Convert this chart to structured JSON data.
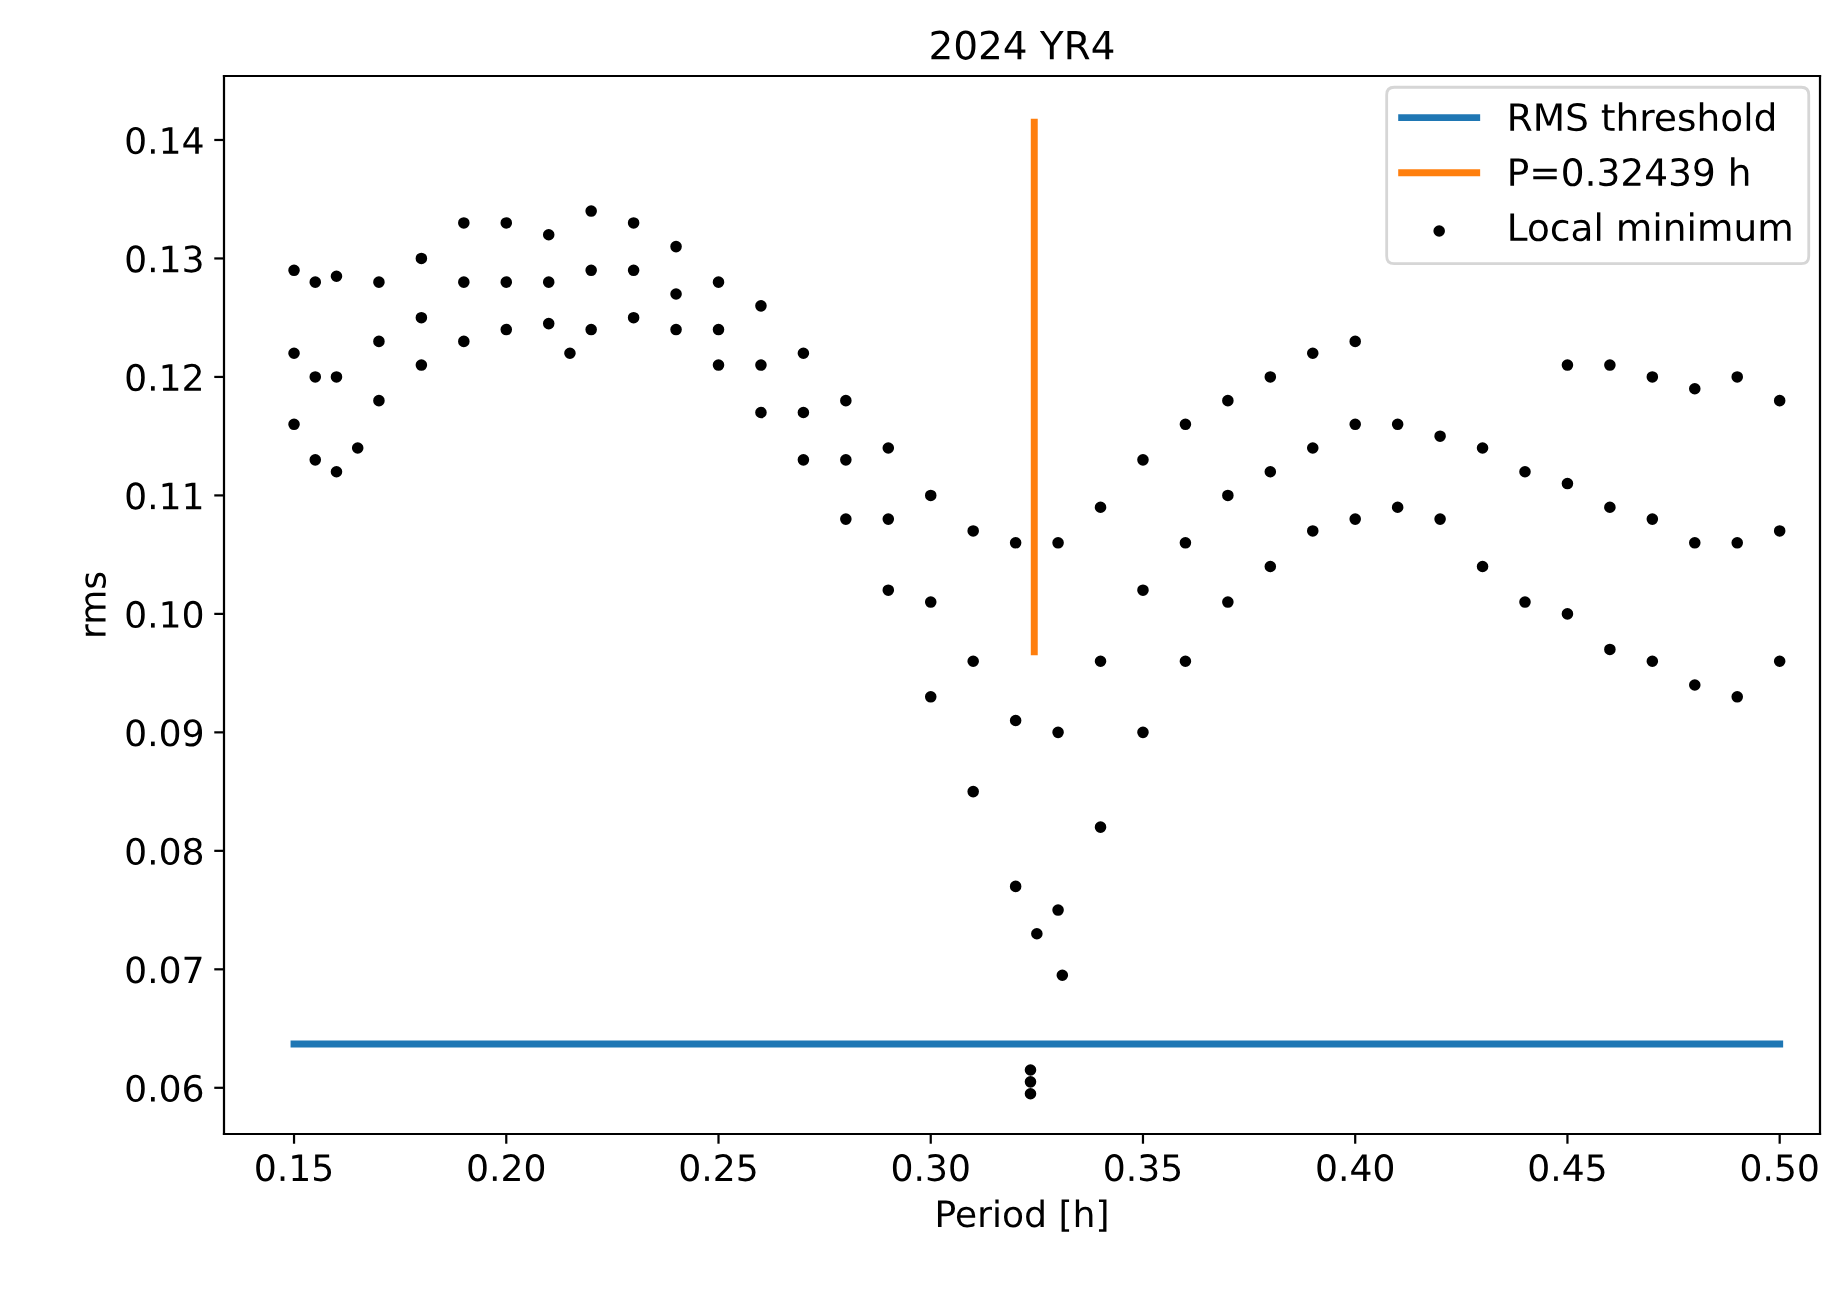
{
  "chart_data": {
    "type": "scatter",
    "title": "2024 YR4",
    "xlabel": "Period [h]",
    "ylabel": "rms",
    "xlim": [
      0.1335,
      0.5095
    ],
    "ylim": [
      0.0561,
      0.1454
    ],
    "xticks": [
      0.15,
      {
        "value": 0.2,
        "label": "0.20"
      },
      0.25,
      {
        "value": 0.3,
        "label": "0.30"
      },
      0.35,
      {
        "value": 0.4,
        "label": "0.40"
      },
      0.45,
      {
        "value": 0.5,
        "label": "0.50"
      }
    ],
    "yticks": [
      0.06,
      0.07,
      0.08,
      0.09,
      {
        "value": 0.1,
        "label": "0.10"
      },
      0.11,
      0.12,
      0.13,
      0.14
    ],
    "grid": false,
    "legend": "top right",
    "series": [
      {
        "name": "RMS threshold",
        "type": "line",
        "color": "#1f77b4",
        "x": [
          0.15,
          0.5
        ],
        "values": [
          0.0637,
          0.0637
        ]
      },
      {
        "name": "P=0.32439 h",
        "type": "line",
        "color": "#ff7f0e",
        "x": [
          0.32439,
          0.32439
        ],
        "values": [
          0.0968,
          0.1415
        ]
      },
      {
        "name": "Local minimum",
        "color": "#000000",
        "marker": "circle",
        "x": [
          0.15,
          0.155,
          0.16,
          0.17,
          0.18,
          0.19,
          0.2,
          0.21,
          0.22,
          0.23,
          0.24,
          0.25,
          0.26,
          0.27,
          0.28,
          0.29,
          0.3,
          0.31,
          0.32,
          0.33,
          0.34,
          0.35,
          0.36,
          0.37,
          0.38,
          0.39,
          0.4,
          0.45,
          0.46,
          0.47,
          0.48,
          0.49,
          0.5,
          0.15,
          0.155,
          0.16,
          0.165,
          0.17,
          0.18,
          0.19,
          0.2,
          0.21,
          0.215,
          0.22,
          0.23,
          0.24,
          0.25,
          0.26,
          0.27,
          0.28,
          0.29,
          0.3,
          0.31,
          0.32,
          0.325,
          0.33,
          0.34,
          0.35,
          0.36,
          0.37,
          0.38,
          0.39,
          0.4,
          0.41,
          0.42,
          0.43,
          0.44,
          0.45,
          0.46,
          0.47,
          0.48,
          0.49,
          0.5,
          0.15,
          0.155,
          0.16,
          0.17,
          0.18,
          0.19,
          0.2,
          0.21,
          0.22,
          0.23,
          0.24,
          0.25,
          0.26,
          0.27,
          0.28,
          0.29,
          0.3,
          0.31,
          0.32,
          0.33,
          0.34,
          0.35,
          0.36,
          0.37,
          0.38,
          0.39,
          0.4,
          0.41,
          0.42,
          0.43,
          0.44,
          0.45,
          0.46,
          0.47,
          0.48,
          0.49,
          0.5,
          0.331,
          0.3235,
          0.3235,
          0.3235
        ],
        "values": [
          0.129,
          0.128,
          0.1285,
          0.128,
          0.13,
          0.133,
          0.133,
          0.132,
          0.134,
          0.133,
          0.131,
          0.128,
          0.126,
          0.122,
          0.118,
          0.114,
          0.11,
          0.107,
          0.106,
          0.106,
          0.109,
          0.113,
          0.116,
          0.118,
          0.12,
          0.122,
          0.123,
          0.121,
          0.121,
          0.12,
          0.119,
          0.12,
          0.118,
          0.116,
          0.113,
          0.112,
          0.114,
          0.118,
          0.121,
          0.123,
          0.124,
          0.1245,
          0.122,
          0.124,
          0.125,
          0.124,
          0.121,
          0.117,
          0.113,
          0.108,
          0.102,
          0.093,
          0.085,
          0.077,
          0.073,
          0.075,
          0.082,
          0.09,
          0.096,
          0.101,
          0.104,
          0.107,
          0.108,
          0.109,
          0.108,
          0.104,
          0.101,
          0.1,
          0.097,
          0.096,
          0.094,
          0.093,
          0.096,
          0.122,
          0.12,
          0.12,
          0.123,
          0.125,
          0.128,
          0.128,
          0.128,
          0.129,
          0.129,
          0.127,
          0.124,
          0.121,
          0.117,
          0.113,
          0.108,
          0.101,
          0.096,
          0.091,
          0.09,
          0.096,
          0.102,
          0.106,
          0.11,
          0.112,
          0.114,
          0.116,
          0.116,
          0.115,
          0.114,
          0.112,
          0.111,
          0.109,
          0.108,
          0.106,
          0.106,
          0.107,
          0.0695,
          0.0615,
          0.0605,
          0.0595
        ]
      }
    ]
  }
}
